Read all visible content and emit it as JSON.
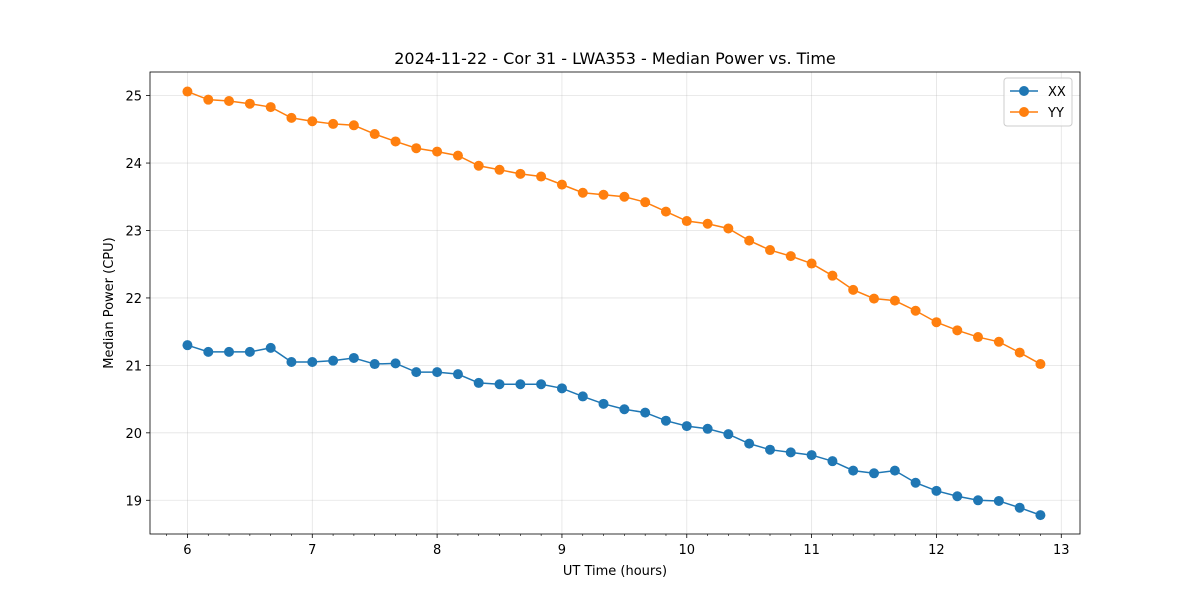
{
  "chart_data": {
    "type": "line",
    "title": "2024-11-22 - Cor 31 - LWA353 - Median Power vs. Time",
    "xlabel": "UT Time (hours)",
    "ylabel": "Median Power (CPU)",
    "xlim": [
      5.7,
      13.15
    ],
    "ylim": [
      18.5,
      25.35
    ],
    "xticks": [
      6,
      7,
      8,
      9,
      10,
      11,
      12,
      13
    ],
    "yticks": [
      19,
      20,
      21,
      22,
      23,
      24,
      25
    ],
    "grid": true,
    "legend_position": "top-right",
    "x": [
      6.0,
      6.167,
      6.333,
      6.5,
      6.667,
      6.833,
      7.0,
      7.167,
      7.333,
      7.5,
      7.667,
      7.833,
      8.0,
      8.167,
      8.333,
      8.5,
      8.667,
      8.833,
      9.0,
      9.167,
      9.333,
      9.5,
      9.667,
      9.833,
      10.0,
      10.167,
      10.333,
      10.5,
      10.667,
      10.833,
      11.0,
      11.167,
      11.333,
      11.5,
      11.667,
      11.833,
      12.0,
      12.167,
      12.333,
      12.5,
      12.667,
      12.833
    ],
    "series": [
      {
        "name": "XX",
        "color": "#1f77b4",
        "values": [
          21.3,
          21.2,
          21.2,
          21.2,
          21.26,
          21.05,
          21.05,
          21.07,
          21.11,
          21.02,
          21.03,
          20.9,
          20.9,
          20.87,
          20.74,
          20.72,
          20.72,
          20.72,
          20.66,
          20.54,
          20.43,
          20.35,
          20.3,
          20.18,
          20.1,
          20.06,
          19.98,
          19.84,
          19.75,
          19.71,
          19.67,
          19.58,
          19.44,
          19.4,
          19.44,
          19.26,
          19.14,
          19.06,
          19.0,
          18.99,
          18.89,
          18.78
        ]
      },
      {
        "name": "YY",
        "color": "#ff7f0e",
        "values": [
          25.06,
          24.94,
          24.92,
          24.88,
          24.83,
          24.67,
          24.62,
          24.58,
          24.56,
          24.43,
          24.32,
          24.22,
          24.17,
          24.11,
          23.96,
          23.9,
          23.84,
          23.8,
          23.68,
          23.56,
          23.53,
          23.5,
          23.42,
          23.28,
          23.14,
          23.1,
          23.03,
          22.85,
          22.71,
          22.62,
          22.51,
          22.33,
          22.12,
          21.99,
          21.96,
          21.81,
          21.64,
          21.52,
          21.42,
          21.35,
          21.19,
          21.02
        ]
      }
    ]
  }
}
